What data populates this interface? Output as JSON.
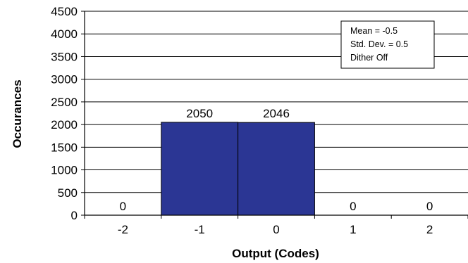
{
  "chart_data": {
    "type": "bar",
    "categories": [
      "-2",
      "-1",
      "0",
      "1",
      "2"
    ],
    "values": [
      0,
      2050,
      2046,
      0,
      0
    ],
    "data_labels": [
      "0",
      "2050",
      "2046",
      "0",
      "0"
    ],
    "xlabel": "Output (Codes)",
    "ylabel": "Occurances",
    "ylim": [
      0,
      4500
    ],
    "yticks": [
      0,
      500,
      1000,
      1500,
      2000,
      2500,
      3000,
      3500,
      4000,
      4500
    ],
    "grid": true,
    "bar_color": "#2b3694",
    "annotation": {
      "lines": [
        "Mean = -0.5",
        "Std. Dev. = 0.5",
        "Dither Off"
      ],
      "position": "top-right"
    }
  }
}
